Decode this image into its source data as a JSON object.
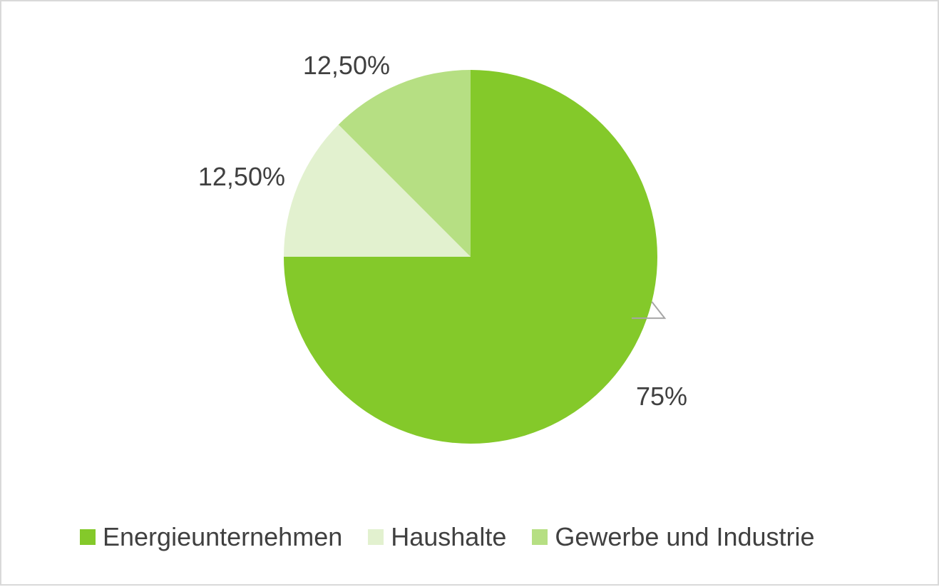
{
  "chart_data": {
    "type": "pie",
    "slices": [
      {
        "name": "Energieunternehmen",
        "value": 75,
        "label": "75%",
        "color": "#84c92a"
      },
      {
        "name": "Haushalte",
        "value": 12.5,
        "label": "12,50%",
        "color": "#e2f1cf"
      },
      {
        "name": "Gewerbe und Industrie",
        "value": 12.5,
        "label": "12,50%",
        "color": "#b6df83"
      }
    ],
    "legend_position": "bottom"
  }
}
